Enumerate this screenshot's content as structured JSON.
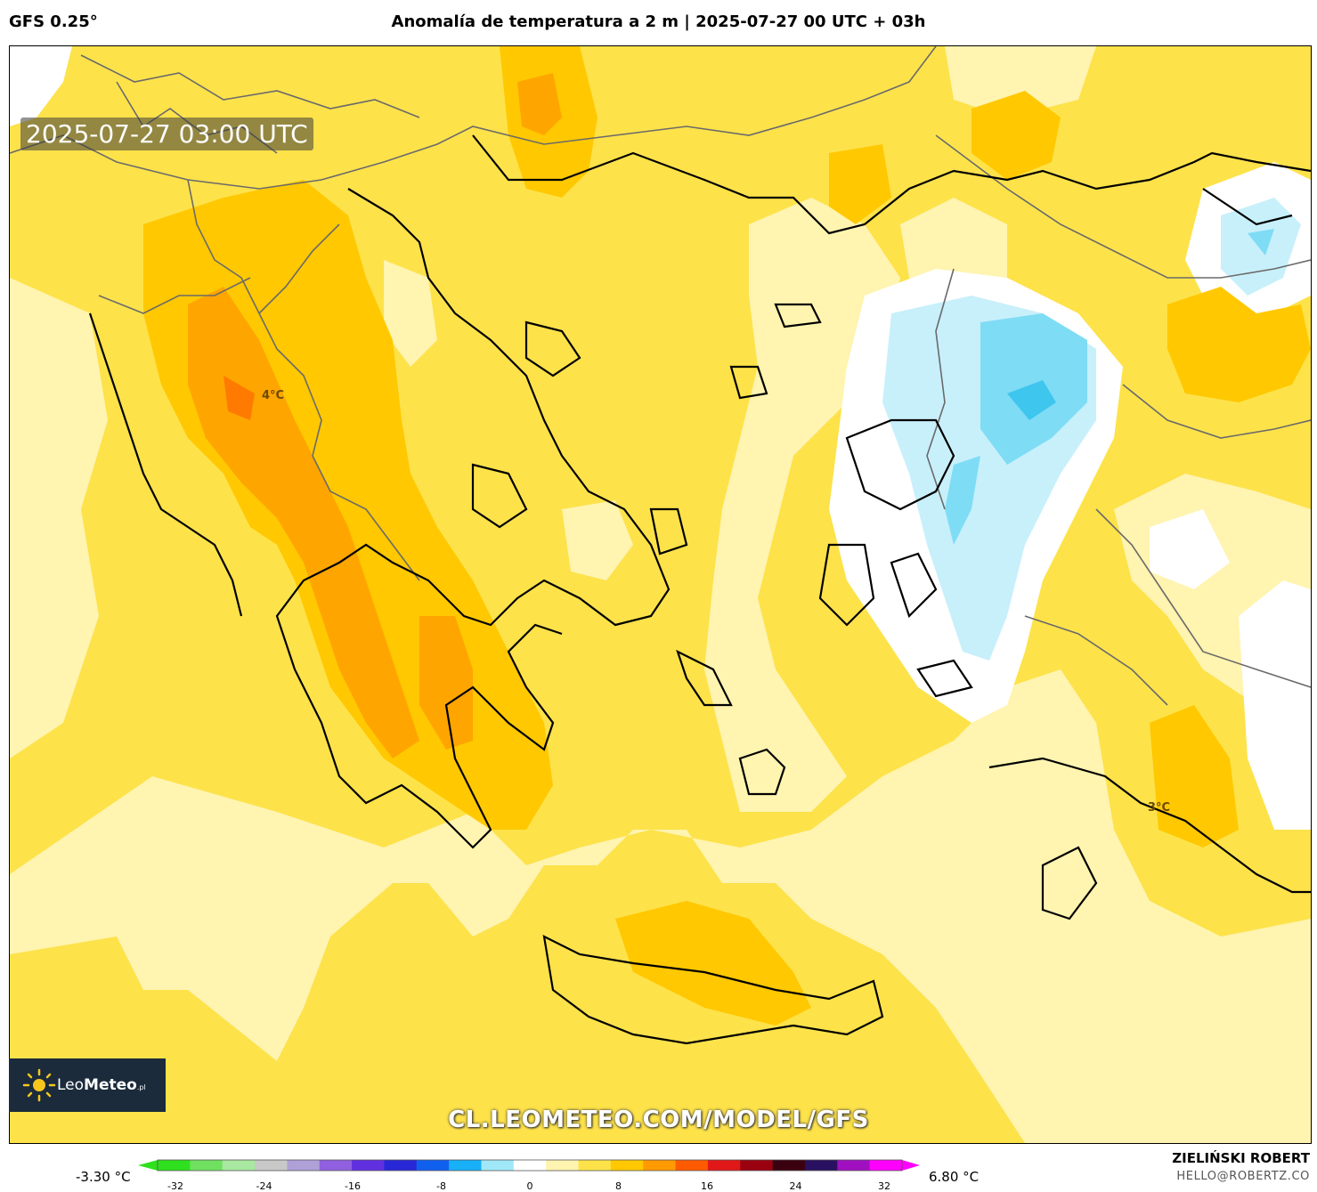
{
  "header": {
    "model": "GFS 0.25°",
    "title": "Anomalía de temperatura a 2 m | 2025-07-27 00 UTC + 03h"
  },
  "map": {
    "timestamp": "2025-07-27 03:00 UTC",
    "watermark": "CL.LEOMETEO.COM/MODEL/GFS",
    "labels": {
      "max_anomaly": "4°C",
      "east_anomaly": "3°C"
    },
    "logo": {
      "brand_light": "Leo",
      "brand_bold": "Meteo",
      "suffix": ".pl"
    }
  },
  "legend": {
    "min_value": "-3.30 °C",
    "max_value": "6.80 °C",
    "ticks": [
      "-32",
      "-24",
      "-16",
      "-8",
      "0",
      "8",
      "16",
      "24",
      "32"
    ],
    "colors": [
      "#2ee01e",
      "#70e060",
      "#a8e8a0",
      "#c8c8c8",
      "#b0a0d8",
      "#9060e0",
      "#6030e0",
      "#2828d8",
      "#1060f0",
      "#18b0f8",
      "#a0e8f8",
      "#ffffff",
      "#fff4b0",
      "#fde24a",
      "#ffc800",
      "#ff9a00",
      "#ff5a00",
      "#e01818",
      "#9a0010",
      "#3a0010",
      "#2a1060",
      "#a010c0",
      "#ff00ff"
    ]
  },
  "author": {
    "name": "ZIELIŃSKI ROBERT",
    "email": "HELLO@ROBERTZ.CO"
  }
}
